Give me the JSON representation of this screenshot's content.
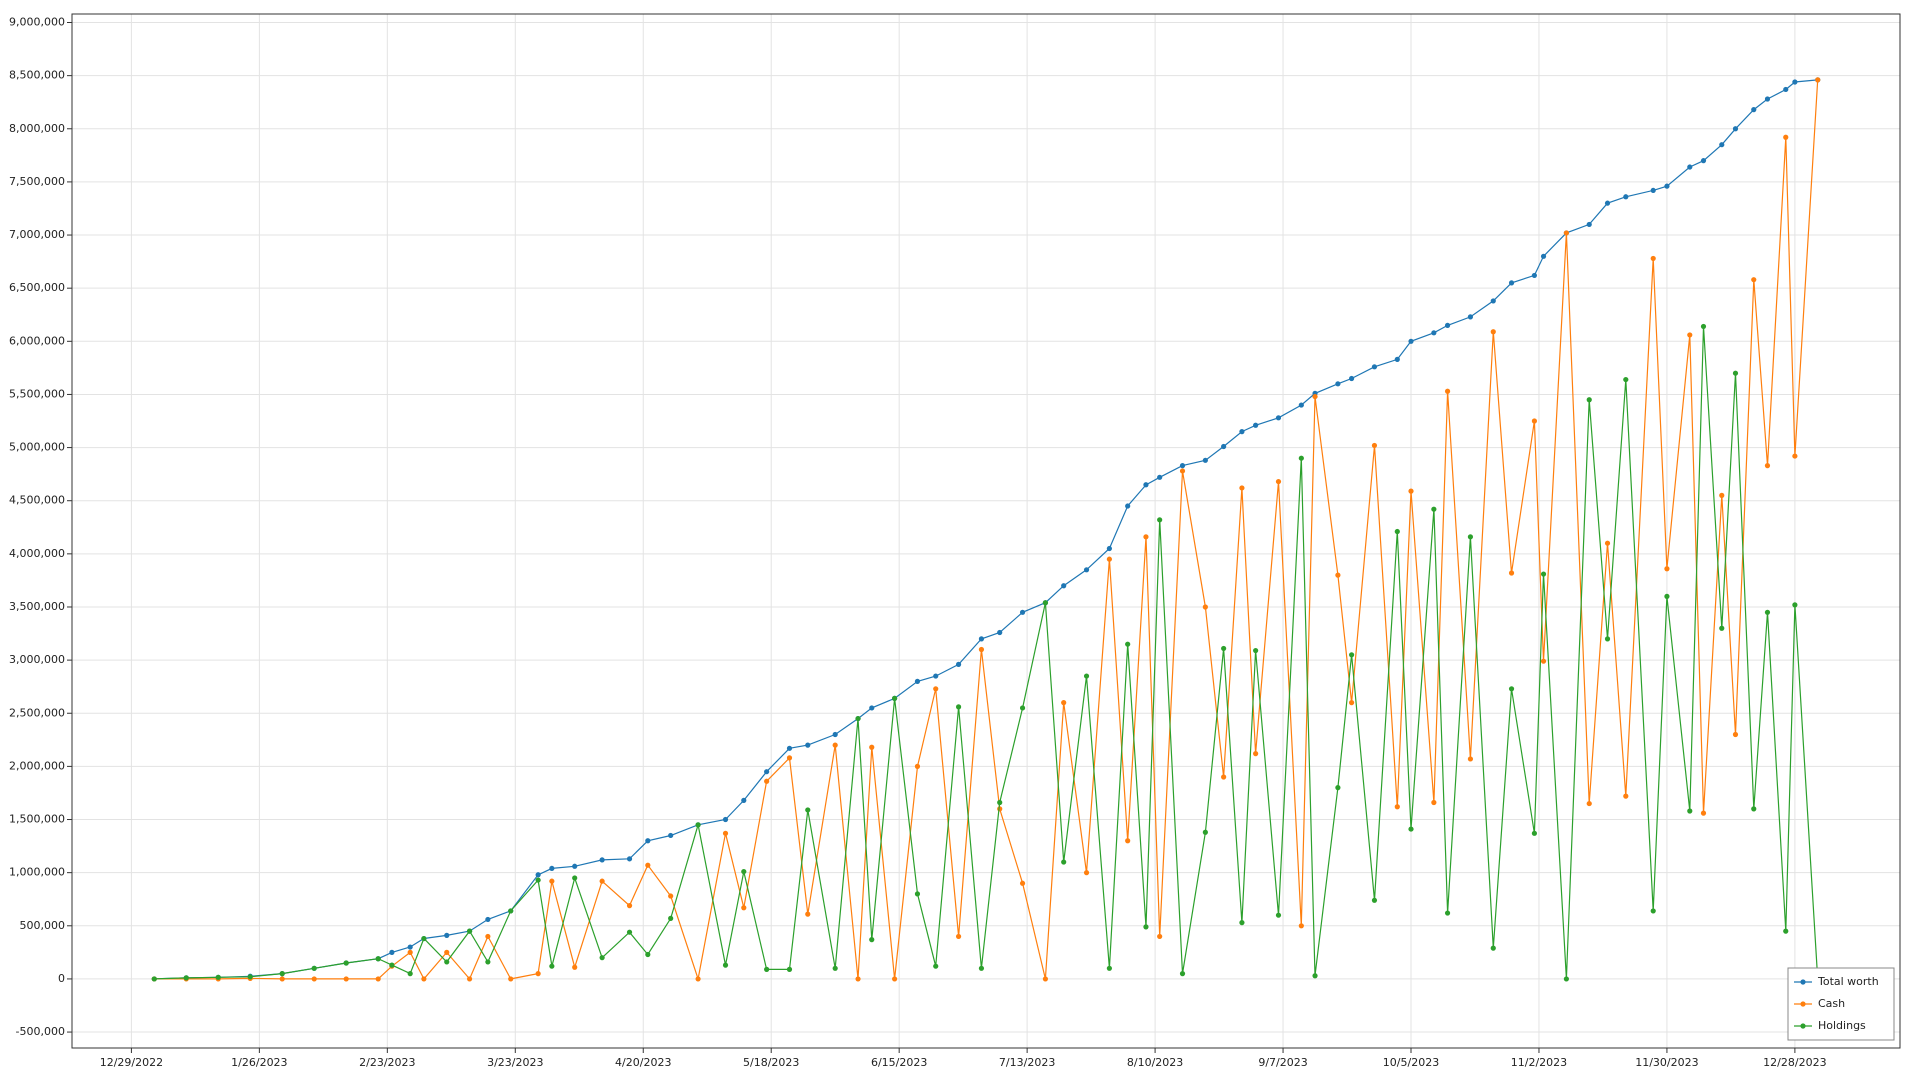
{
  "chart_data": {
    "type": "line",
    "x": [
      "1/3/2023",
      "1/10/2023",
      "1/17/2023",
      "1/24/2023",
      "1/31/2023",
      "2/7/2023",
      "2/14/2023",
      "2/21/2023",
      "2/24/2023",
      "2/28/2023",
      "3/3/2023",
      "3/8/2023",
      "3/13/2023",
      "3/17/2023",
      "3/22/2023",
      "3/28/2023",
      "3/31/2023",
      "4/5/2023",
      "4/11/2023",
      "4/17/2023",
      "4/21/2023",
      "4/26/2023",
      "5/2/2023",
      "5/8/2023",
      "5/12/2023",
      "5/17/2023",
      "5/22/2023",
      "5/26/2023",
      "6/1/2023",
      "6/6/2023",
      "6/9/2023",
      "6/14/2023",
      "6/19/2023",
      "6/23/2023",
      "6/28/2023",
      "7/3/2023",
      "7/7/2023",
      "7/12/2023",
      "7/17/2023",
      "7/21/2023",
      "7/26/2023",
      "7/31/2023",
      "8/4/2023",
      "8/8/2023",
      "8/11/2023",
      "8/16/2023",
      "8/21/2023",
      "8/25/2023",
      "8/29/2023",
      "9/1/2023",
      "9/6/2023",
      "9/11/2023",
      "9/14/2023",
      "9/19/2023",
      "9/22/2023",
      "9/27/2023",
      "10/2/2023",
      "10/5/2023",
      "10/10/2023",
      "10/13/2023",
      "10/18/2023",
      "10/23/2023",
      "10/27/2023",
      "11/1/2023",
      "11/3/2023",
      "11/8/2023",
      "11/13/2023",
      "11/17/2023",
      "11/21/2023",
      "11/27/2023",
      "11/30/2023",
      "12/5/2023",
      "12/8/2023",
      "12/12/2023",
      "12/15/2023",
      "12/19/2023",
      "12/22/2023",
      "12/26/2023",
      "12/28/2023",
      "1/2/2024"
    ],
    "series": [
      {
        "name": "Total worth",
        "color": "#1f77b4",
        "values": [
          0,
          10000,
          15000,
          25000,
          50000,
          100000,
          150000,
          190000,
          250000,
          300000,
          380000,
          410000,
          450000,
          560000,
          640000,
          980000,
          1040000,
          1060000,
          1120000,
          1130000,
          1300000,
          1350000,
          1450000,
          1500000,
          1680000,
          1950000,
          2170000,
          2200000,
          2300000,
          2450000,
          2550000,
          2640000,
          2800000,
          2850000,
          2960000,
          3200000,
          3260000,
          3450000,
          3540000,
          3700000,
          3850000,
          4050000,
          4450000,
          4650000,
          4720000,
          4830000,
          4880000,
          5010000,
          5150000,
          5210000,
          5280000,
          5400000,
          5510000,
          5600000,
          5650000,
          5760000,
          5830000,
          6000000,
          6080000,
          6150000,
          6230000,
          6380000,
          6550000,
          6620000,
          6800000,
          7020000,
          7100000,
          7300000,
          7360000,
          7420000,
          7460000,
          7640000,
          7700000,
          7850000,
          8000000,
          8180000,
          8280000,
          8370000,
          8440000,
          8460000
        ]
      },
      {
        "name": "Cash",
        "color": "#ff7f0e",
        "values": [
          0,
          0,
          0,
          5000,
          0,
          0,
          0,
          0,
          120000,
          250000,
          0,
          250000,
          0,
          400000,
          0,
          50000,
          920000,
          110000,
          920000,
          690000,
          1070000,
          780000,
          0,
          1370000,
          670000,
          1860000,
          2080000,
          610000,
          2200000,
          0,
          2180000,
          0,
          2000000,
          2730000,
          400000,
          3100000,
          1600000,
          900000,
          0,
          2600000,
          1000000,
          3950000,
          1300000,
          4160000,
          400000,
          4780000,
          3500000,
          1900000,
          4620000,
          2120000,
          4680000,
          500000,
          5480000,
          3800000,
          2600000,
          5020000,
          1620000,
          4590000,
          1660000,
          5530000,
          2070000,
          6090000,
          3820000,
          5250000,
          2990000,
          7020000,
          1650000,
          4100000,
          1720000,
          6780000,
          3860000,
          6060000,
          1560000,
          4550000,
          2300000,
          6580000,
          4830000,
          7920000,
          4920000,
          8460000
        ]
      },
      {
        "name": "Holdings",
        "color": "#2ca02c",
        "values": [
          0,
          10000,
          15000,
          20000,
          50000,
          100000,
          150000,
          190000,
          130000,
          50000,
          380000,
          160000,
          450000,
          160000,
          640000,
          930000,
          120000,
          950000,
          200000,
          440000,
          230000,
          570000,
          1450000,
          130000,
          1010000,
          90000,
          90000,
          1590000,
          100000,
          2450000,
          370000,
          2640000,
          800000,
          120000,
          2560000,
          100000,
          1660000,
          2550000,
          3540000,
          1100000,
          2850000,
          100000,
          3150000,
          490000,
          4320000,
          50000,
          1380000,
          3110000,
          530000,
          3090000,
          600000,
          4900000,
          30000,
          1800000,
          3050000,
          740000,
          4210000,
          1410000,
          4420000,
          620000,
          4160000,
          290000,
          2730000,
          1370000,
          3810000,
          0,
          5450000,
          3200000,
          5640000,
          640000,
          3600000,
          1580000,
          6140000,
          3300000,
          5700000,
          1600000,
          3450000,
          450000,
          3520000,
          0
        ]
      }
    ],
    "xlim": [
      "12/16/2022",
      "1/20/2024"
    ],
    "xticks": [
      "12/29/2022",
      "1/26/2023",
      "2/23/2023",
      "3/23/2023",
      "4/20/2023",
      "5/18/2023",
      "6/15/2023",
      "7/13/2023",
      "8/10/2023",
      "9/7/2023",
      "10/5/2023",
      "11/2/2023",
      "11/30/2023",
      "12/28/2023"
    ],
    "ylim": [
      -650000,
      9080000
    ],
    "yticks": [
      {
        "value": -500000,
        "label": "-500,000"
      },
      0,
      {
        "value": 500000,
        "label": "500,000"
      },
      {
        "value": 1000000,
        "label": "1,000,000"
      },
      {
        "value": 1500000,
        "label": "1,500,000"
      },
      {
        "value": 2000000,
        "label": "2,000,000"
      },
      {
        "value": 2500000,
        "label": "2,500,000"
      },
      {
        "value": 3000000,
        "label": "3,000,000"
      },
      {
        "value": 3500000,
        "label": "3,500,000"
      },
      {
        "value": 4000000,
        "label": "4,000,000"
      },
      {
        "value": 4500000,
        "label": "4,500,000"
      },
      {
        "value": 5000000,
        "label": "5,000,000"
      },
      {
        "value": 5500000,
        "label": "5,500,000"
      },
      {
        "value": 6000000,
        "label": "6,000,000"
      },
      {
        "value": 6500000,
        "label": "6,500,000"
      },
      {
        "value": 7000000,
        "label": "7,000,000"
      },
      {
        "value": 7500000,
        "label": "7,500,000"
      },
      {
        "value": 8000000,
        "label": "8,000,000"
      },
      {
        "value": 8500000,
        "label": "8,500,000"
      },
      {
        "value": 9000000,
        "label": "9,000,000"
      }
    ],
    "grid": true,
    "legend": "lower right"
  }
}
